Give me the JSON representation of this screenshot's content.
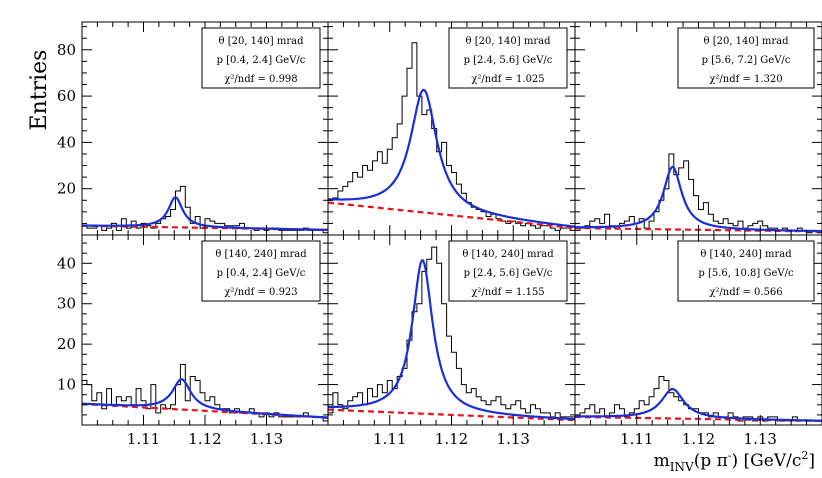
{
  "chart_data": {
    "type": "bar",
    "ylabel": "Entries",
    "xlabel": "m_INV(p π⁻) [GeV/c²]",
    "x_ticks": [
      "1.11",
      "1.12",
      "1.13"
    ],
    "xlim": [
      1.1,
      1.14
    ],
    "y_ticks_top": [
      "20",
      "40",
      "60",
      "80"
    ],
    "ylim_top": [
      0,
      92
    ],
    "y_ticks_bottom": [
      "10",
      "20",
      "30",
      "40"
    ],
    "ylim_bottom": [
      0,
      47
    ],
    "colors": {
      "fit": "#1a2fd6",
      "background": "#e8141b",
      "histogram": "#000000"
    },
    "panels": [
      {
        "row": 0,
        "col": 0,
        "legend": [
          "θ [20, 140] mrad",
          "p [0.4, 2.4] GeV/c",
          "χ²/ndf = 0.998"
        ],
        "peak": 1.1152,
        "width": 0.0014,
        "amp": 13,
        "bg": [
          4,
          2.2
        ],
        "hist": [
          4,
          3,
          3,
          4,
          2,
          3,
          5,
          2,
          7,
          3,
          6,
          3,
          5,
          4,
          3,
          5,
          7,
          8,
          11,
          19,
          21,
          12,
          5,
          8,
          3,
          7,
          6,
          5,
          5,
          4,
          4,
          4,
          5,
          3,
          3,
          2,
          3,
          2,
          3,
          3,
          2,
          2,
          2,
          2,
          2,
          3,
          2,
          2,
          2,
          1
        ]
      },
      {
        "row": 0,
        "col": 1,
        "legend": [
          "θ [20, 140] mrad",
          "p [2.4, 5.6] GeV/c",
          "χ²/ndf = 1.025"
        ],
        "peak": 1.1155,
        "width": 0.0026,
        "amp": 53,
        "bg": [
          14,
          3
        ],
        "hist": [
          15,
          16,
          19,
          21,
          23,
          27,
          25,
          30,
          28,
          32,
          36,
          31,
          37,
          42,
          48,
          60,
          72,
          83,
          60,
          52,
          54,
          46,
          36,
          40,
          30,
          27,
          22,
          18,
          14,
          12,
          11,
          10,
          8,
          9,
          7,
          6,
          5,
          6,
          5,
          4,
          5,
          4,
          3,
          4,
          4,
          3,
          2,
          3,
          3,
          2
        ]
      },
      {
        "row": 0,
        "col": 2,
        "legend": [
          "θ [20, 140] mrad",
          "p [5.6, 7.2] GeV/c",
          "χ²/ndf = 1.320"
        ],
        "peak": 1.1158,
        "width": 0.0018,
        "amp": 27,
        "bg": [
          3,
          1.5
        ],
        "hist": [
          2,
          3,
          4,
          6,
          7,
          5,
          9,
          4,
          3,
          5,
          6,
          8,
          5,
          7,
          3,
          6,
          10,
          15,
          20,
          35,
          26,
          29,
          32,
          24,
          17,
          11,
          14,
          9,
          6,
          5,
          7,
          5,
          4,
          6,
          3,
          4,
          5,
          6,
          4,
          3,
          3,
          2,
          3,
          2,
          2,
          3,
          2,
          1,
          2,
          1
        ]
      },
      {
        "row": 1,
        "col": 0,
        "legend": [
          "θ [140, 240] mrad",
          "p [0.4, 2.4] GeV/c",
          "χ²/ndf = 0.923"
        ],
        "peak": 1.1162,
        "width": 0.0018,
        "amp": 7.5,
        "bg": [
          5.2,
          1.8
        ],
        "hist": [
          11,
          10,
          6,
          8,
          4,
          9,
          5,
          7,
          6,
          7,
          5,
          9,
          6,
          4,
          10,
          3,
          5,
          4,
          5,
          10,
          15,
          6,
          12,
          11,
          8,
          6,
          7,
          5,
          4,
          4,
          3,
          4,
          3,
          3,
          4,
          3,
          2,
          3,
          2,
          3,
          2,
          2,
          2,
          2,
          2,
          3,
          2,
          2,
          2,
          1
        ]
      },
      {
        "row": 1,
        "col": 1,
        "legend": [
          "θ [140, 240] mrad",
          "p [2.4, 5.6] GeV/c",
          "χ²/ndf = 1.155"
        ],
        "peak": 1.1153,
        "width": 0.002,
        "amp": 38,
        "bg": [
          3.8,
          1.2
        ],
        "hist": [
          3,
          8,
          5,
          4,
          6,
          7,
          8,
          5,
          9,
          7,
          10,
          8,
          11,
          9,
          12,
          14,
          21,
          28,
          30,
          38,
          41,
          44,
          40,
          30,
          22,
          18,
          14,
          10,
          8,
          9,
          7,
          6,
          5,
          6,
          7,
          5,
          4,
          5,
          6,
          4,
          3,
          5,
          4,
          3,
          3,
          2,
          3,
          2,
          2,
          2
        ]
      },
      {
        "row": 1,
        "col": 2,
        "legend": [
          "θ [140, 240] mrad",
          "p [5.6, 10.8] GeV/c",
          "χ²/ndf = 0.566"
        ],
        "peak": 1.1158,
        "width": 0.0022,
        "amp": 7.3,
        "bg": [
          2,
          1
        ],
        "hist": [
          2,
          3,
          4,
          5,
          3,
          4,
          2,
          3,
          5,
          4,
          2,
          3,
          4,
          6,
          5,
          7,
          9,
          12,
          11,
          8,
          7,
          6,
          5,
          4,
          4,
          3,
          3,
          2,
          3,
          2,
          2,
          3,
          2,
          1,
          2,
          2,
          1,
          2,
          1,
          2,
          2,
          1,
          1,
          1,
          2,
          1,
          1,
          1,
          1,
          1
        ]
      }
    ]
  }
}
